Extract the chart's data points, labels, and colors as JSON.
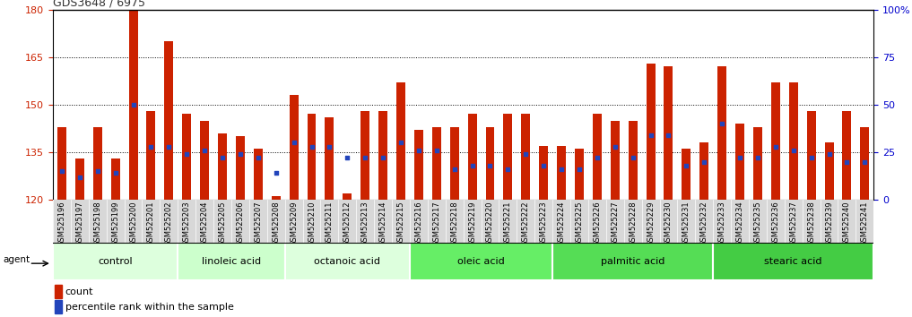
{
  "title": "GDS3648 / 6975",
  "samples": [
    "GSM525196",
    "GSM525197",
    "GSM525198",
    "GSM525199",
    "GSM525200",
    "GSM525201",
    "GSM525202",
    "GSM525203",
    "GSM525204",
    "GSM525205",
    "GSM525206",
    "GSM525207",
    "GSM525208",
    "GSM525209",
    "GSM525210",
    "GSM525211",
    "GSM525212",
    "GSM525213",
    "GSM525214",
    "GSM525215",
    "GSM525216",
    "GSM525217",
    "GSM525218",
    "GSM525219",
    "GSM525220",
    "GSM525221",
    "GSM525222",
    "GSM525223",
    "GSM525224",
    "GSM525225",
    "GSM525226",
    "GSM525227",
    "GSM525228",
    "GSM525229",
    "GSM525230",
    "GSM525231",
    "GSM525232",
    "GSM525233",
    "GSM525234",
    "GSM525235",
    "GSM525236",
    "GSM525237",
    "GSM525238",
    "GSM525239",
    "GSM525240",
    "GSM525241"
  ],
  "count_values": [
    143,
    133,
    143,
    133,
    180,
    148,
    170,
    147,
    145,
    141,
    140,
    136,
    121,
    153,
    147,
    146,
    122,
    148,
    148,
    157,
    142,
    143,
    143,
    147,
    143,
    147,
    147,
    137,
    137,
    136,
    147,
    145,
    145,
    163,
    162,
    136,
    138,
    162,
    144,
    143,
    157,
    157,
    148,
    138,
    148,
    143
  ],
  "percentile_values": [
    15,
    12,
    15,
    14,
    50,
    28,
    28,
    24,
    26,
    22,
    24,
    22,
    14,
    30,
    28,
    28,
    22,
    22,
    22,
    30,
    26,
    26,
    16,
    18,
    18,
    16,
    24,
    18,
    16,
    16,
    22,
    28,
    22,
    34,
    34,
    18,
    20,
    40,
    22,
    22,
    28,
    26,
    22,
    24,
    20,
    20
  ],
  "groups": [
    {
      "label": "control",
      "start": 0,
      "end": 7,
      "color": "#ddffdd"
    },
    {
      "label": "linoleic acid",
      "start": 7,
      "end": 13,
      "color": "#ccffcc"
    },
    {
      "label": "octanoic acid",
      "start": 13,
      "end": 20,
      "color": "#ddffdd"
    },
    {
      "label": "oleic acid",
      "start": 20,
      "end": 28,
      "color": "#66ee66"
    },
    {
      "label": "palmitic acid",
      "start": 28,
      "end": 37,
      "color": "#55dd55"
    },
    {
      "label": "stearic acid",
      "start": 37,
      "end": 46,
      "color": "#44cc44"
    }
  ],
  "ylim_left": [
    120,
    180
  ],
  "ylim_right": [
    0,
    100
  ],
  "yticks_left": [
    120,
    135,
    150,
    165,
    180
  ],
  "yticks_right": [
    0,
    25,
    50,
    75,
    100
  ],
  "ytick_labels_right": [
    "0",
    "25",
    "50",
    "75",
    "100%"
  ],
  "hlines": [
    135,
    150,
    165
  ],
  "bar_color": "#cc2200",
  "blue_color": "#2244bb",
  "left_axis_color": "#cc2200",
  "right_axis_color": "#0000cc",
  "bar_width": 0.5,
  "xlabel_fontsize": 6.0,
  "group_label_fontsize": 8,
  "legend_count_label": "count",
  "legend_percentile_label": "percentile rank within the sample",
  "agent_label": "agent"
}
